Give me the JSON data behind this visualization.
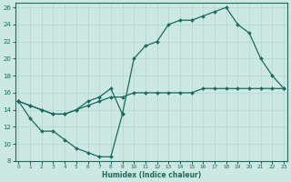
{
  "background_color": "#cbe8e2",
  "grid_color": "#b0d8d0",
  "line_color": "#1a6b5a",
  "ylim": [
    8,
    26
  ],
  "xlim": [
    0,
    23
  ],
  "yticks": [
    8,
    10,
    12,
    14,
    16,
    18,
    20,
    22,
    24,
    26
  ],
  "xticks": [
    0,
    1,
    2,
    3,
    4,
    5,
    6,
    7,
    8,
    9,
    10,
    11,
    12,
    13,
    14,
    15,
    16,
    17,
    18,
    19,
    20,
    21,
    22,
    23
  ],
  "xlabel": "Humidex (Indice chaleur)",
  "line1_x": [
    0,
    1,
    2,
    3,
    4,
    5,
    6,
    7,
    8,
    9,
    10,
    11,
    12,
    13,
    14,
    15,
    16,
    17,
    18,
    19,
    20,
    21,
    22,
    23
  ],
  "line1_y": [
    15,
    14.5,
    14,
    13.5,
    13.5,
    14,
    14.5,
    15,
    15.5,
    15.5,
    16,
    16,
    16,
    16,
    16,
    16,
    16.5,
    16.5,
    16.5,
    16.5,
    16.5,
    16.5,
    16.5,
    16.5
  ],
  "line2_x": [
    0,
    1,
    2,
    3,
    4,
    5,
    6,
    7,
    8,
    9
  ],
  "line2_y": [
    15,
    13,
    11.5,
    11.5,
    10.5,
    9.5,
    9,
    8.5,
    8.5,
    13.5
  ],
  "line3_x": [
    0,
    1,
    2,
    3,
    4,
    5,
    6,
    7,
    8,
    9,
    10,
    11,
    12,
    13,
    14,
    15,
    16,
    17,
    18,
    19,
    20,
    21,
    22,
    23
  ],
  "line3_y": [
    15,
    14.5,
    14,
    13.5,
    13.5,
    14,
    15,
    15.5,
    16.5,
    13.5,
    20,
    21.5,
    22,
    24,
    24.5,
    24.5,
    25,
    25.5,
    26,
    24,
    23,
    20,
    18,
    16.5
  ]
}
